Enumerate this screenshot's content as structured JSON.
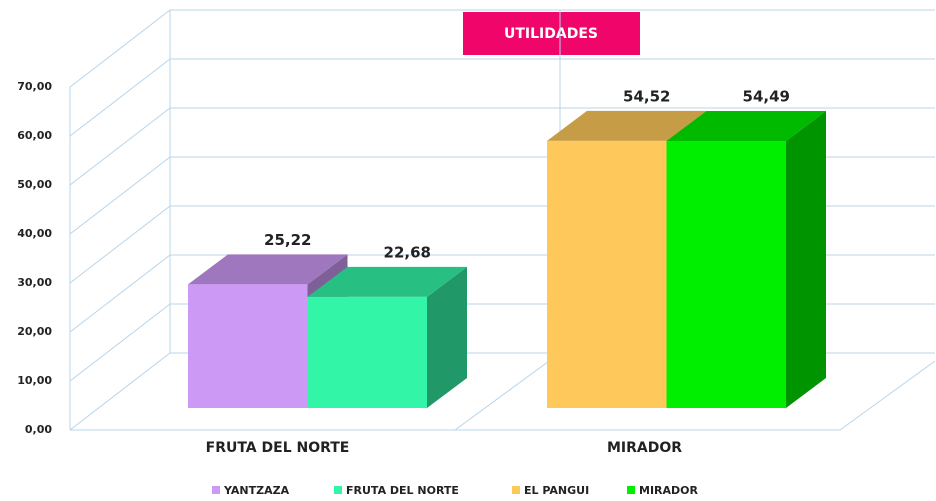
{
  "chart_data": {
    "type": "bar3d",
    "title": "UTILIDADES",
    "categories": [
      "FRUTA DEL NORTE",
      "MIRADOR"
    ],
    "series": [
      {
        "name": "YANTZAZA",
        "color": "#cc99f5",
        "values": [
          25.22,
          null
        ],
        "value_labels": [
          "25,22",
          null
        ]
      },
      {
        "name": "FRUTA DEL NORTE",
        "color": "#33f5a8",
        "values": [
          22.68,
          null
        ],
        "value_labels": [
          "22,68",
          null
        ]
      },
      {
        "name": "EL PANGUI",
        "color": "#ffc85a",
        "values": [
          null,
          54.52
        ],
        "value_labels": [
          null,
          "54,52"
        ]
      },
      {
        "name": "MIRADOR",
        "color": "#00ee00",
        "values": [
          null,
          54.49
        ],
        "value_labels": [
          null,
          "54,49"
        ]
      }
    ],
    "ylim": [
      0,
      70
    ],
    "yticks": [
      {
        "value": 0,
        "label": "0,00"
      },
      {
        "value": 10,
        "label": "10,00"
      },
      {
        "value": 20,
        "label": "20,00"
      },
      {
        "value": 30,
        "label": "30,00"
      },
      {
        "value": 40,
        "label": "40,00"
      },
      {
        "value": 50,
        "label": "50,00"
      },
      {
        "value": 60,
        "label": "60,00"
      },
      {
        "value": 70,
        "label": "70,00"
      }
    ],
    "grid": true,
    "legend": "bottom"
  }
}
